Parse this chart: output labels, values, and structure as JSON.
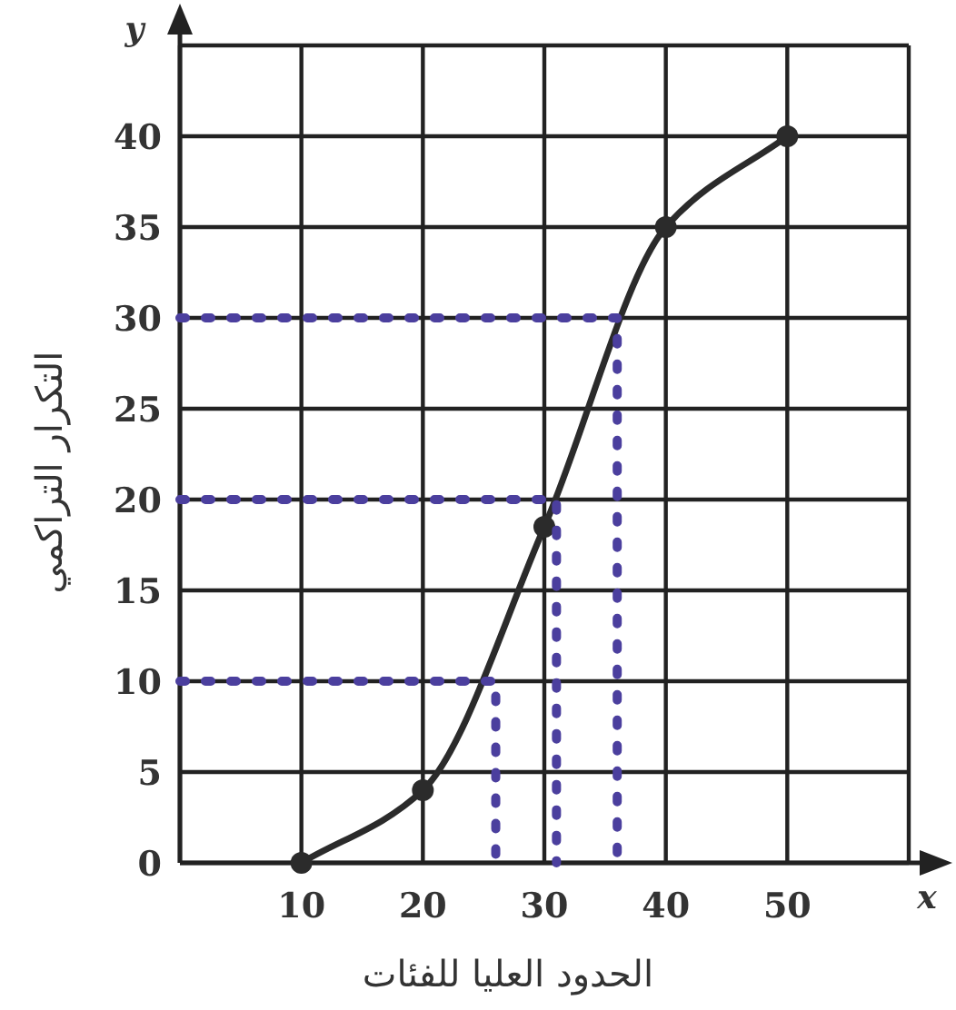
{
  "chart_data": {
    "type": "line",
    "xlabel": "الحدود العليا للفئات",
    "ylabel": "التكرار التراكمي",
    "annotations": [
      "x",
      "y"
    ],
    "xlim": [
      0,
      60
    ],
    "ylim": [
      0,
      45
    ],
    "xticks": [
      {
        "value": 0,
        "label": null
      },
      10,
      20,
      30,
      40,
      50,
      {
        "value": 60,
        "label": null
      }
    ],
    "yticks": [
      0,
      5,
      10,
      15,
      20,
      25,
      30,
      35,
      40,
      {
        "value": 45,
        "label": null
      }
    ],
    "grid": true,
    "series": [
      {
        "x": [
          10,
          20,
          30,
          40,
          50
        ],
        "values": [
          0,
          4,
          18.5,
          35,
          40
        ],
        "color": "#2b2b2b",
        "marker": "circle",
        "line_style": "solid"
      },
      {
        "x": [
          0,
          36,
          36
        ],
        "values": [
          30,
          30,
          0
        ],
        "color": "#4b3f9e",
        "marker": "none",
        "line_style": "dotted"
      },
      {
        "x": [
          0,
          31,
          31
        ],
        "values": [
          20,
          20,
          0
        ],
        "color": "#4b3f9e",
        "marker": "none",
        "line_style": "dotted"
      },
      {
        "x": [
          0,
          26,
          26
        ],
        "values": [
          10,
          10,
          0
        ],
        "color": "#4b3f9e",
        "marker": "none",
        "line_style": "dotted"
      }
    ]
  }
}
